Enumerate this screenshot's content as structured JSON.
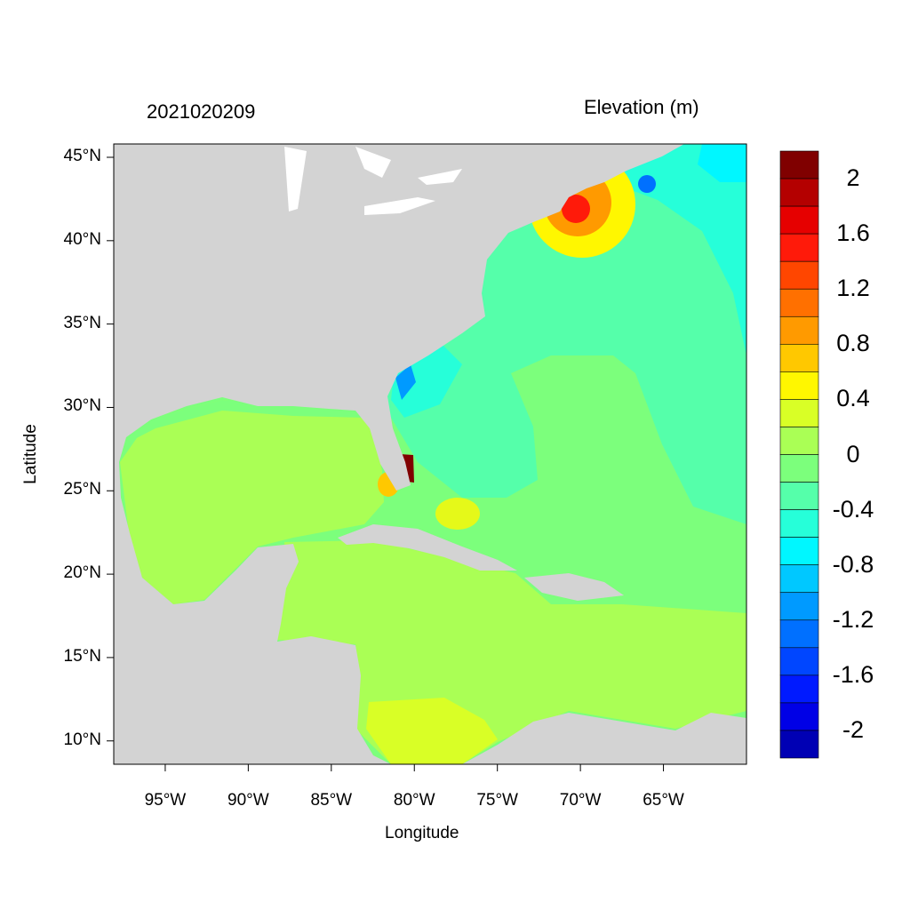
{
  "header": {
    "timestamp": "2021020209",
    "variable": "Elevation (m)"
  },
  "chart_data": {
    "type": "heatmap",
    "title_left": "2021020209",
    "title_right": "Elevation (m)",
    "xlabel": "Longitude",
    "ylabel": "Latitude",
    "xlim": [
      -98.1,
      -60.0
    ],
    "ylim": [
      8.6,
      45.8
    ],
    "x_ticks": [
      "95°W",
      "90°W",
      "85°W",
      "80°W",
      "75°W",
      "70°W",
      "65°W"
    ],
    "y_ticks": [
      "45°N",
      "40°N",
      "35°N",
      "30°N",
      "25°N",
      "20°N",
      "15°N",
      "10°N"
    ],
    "colorbar": {
      "range": [
        -2.2,
        2.2
      ],
      "step": 0.2,
      "labels": [
        "2",
        "1.6",
        "1.2",
        "0.8",
        "0.4",
        "0",
        "-0.4",
        "-0.8",
        "-1.2",
        "-1.6",
        "-2"
      ],
      "colors_top_to_bottom": [
        "#800000",
        "#B40000",
        "#E60000",
        "#FF1A0A",
        "#FF4600",
        "#FF7000",
        "#FF9A00",
        "#FFC800",
        "#FFF700",
        "#D9FF26",
        "#AAFF55",
        "#7CFF7C",
        "#55FFAA",
        "#26FFD9",
        "#00F7FF",
        "#00C8FF",
        "#009AFF",
        "#0070FF",
        "#0046FF",
        "#001AFF",
        "#0000E6",
        "#0000B4"
      ]
    },
    "land_color": "#D3D3D3"
  }
}
